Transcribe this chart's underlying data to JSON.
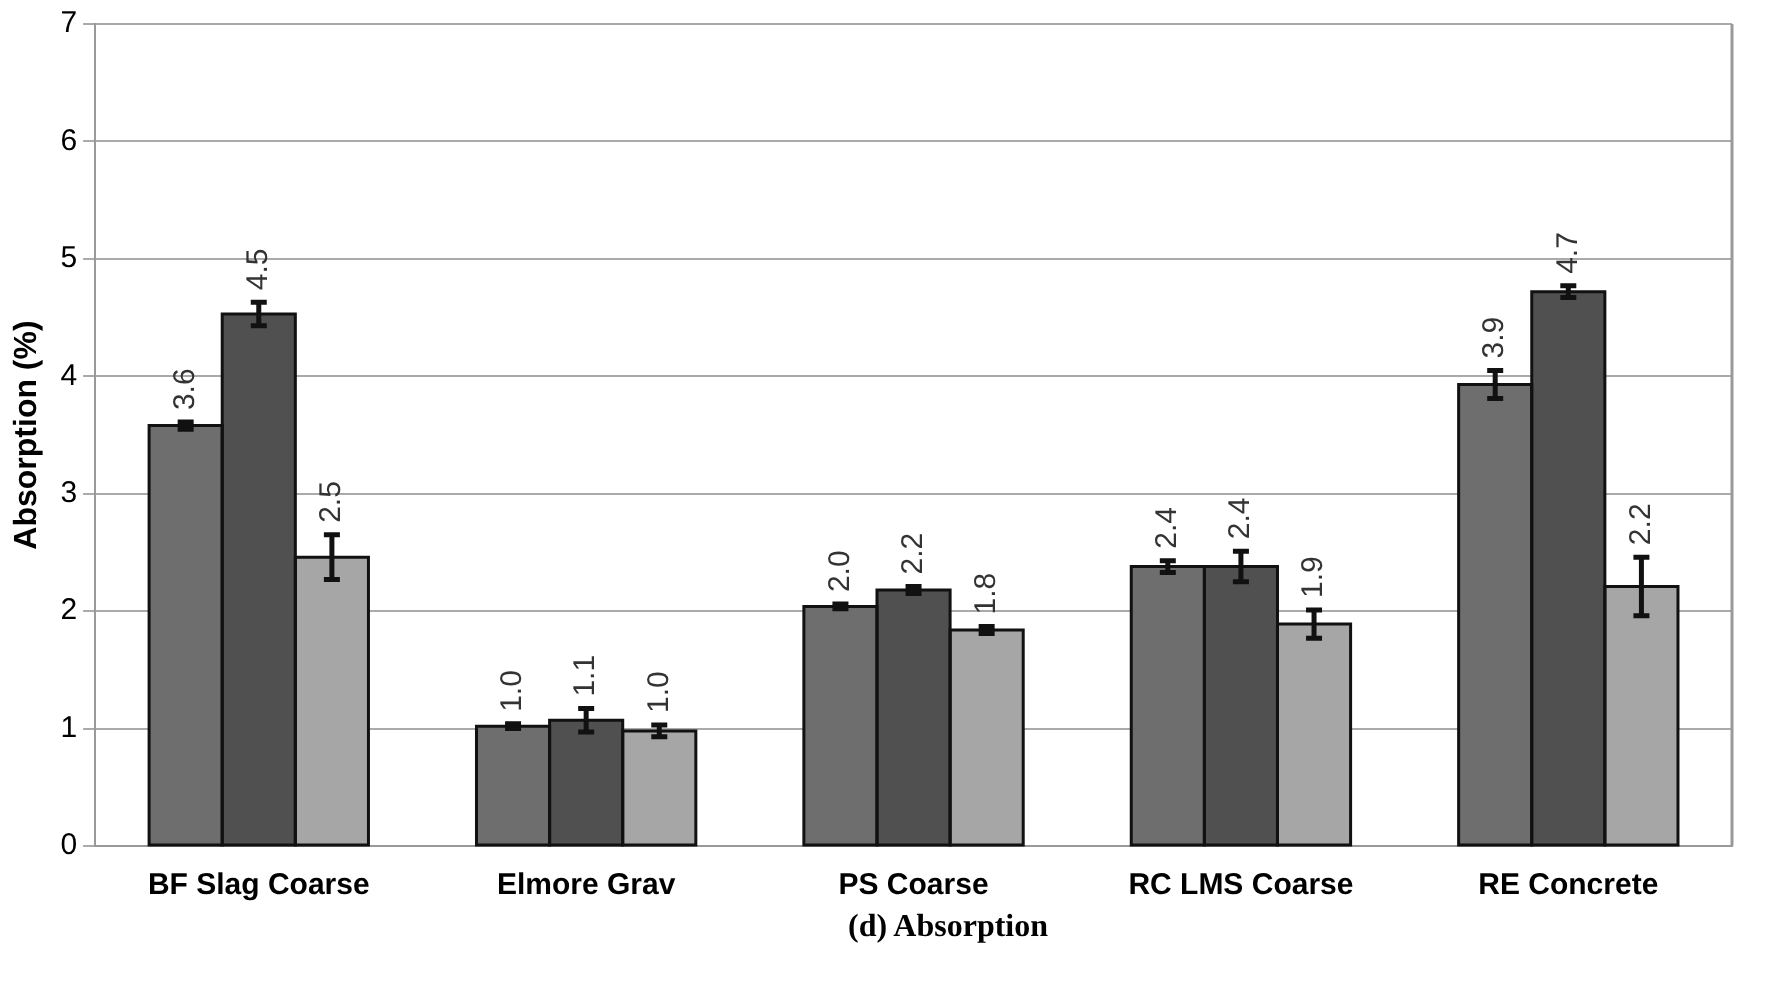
{
  "chart_data": {
    "type": "bar",
    "ylabel": "Absorption (%)",
    "annotations": [
      "(d) Absorption"
    ],
    "categories": [
      "BF Slag Coarse",
      "Elmore Grav",
      "PS Coarse",
      "RC LMS Coarse",
      "RE Concrete"
    ],
    "series": [
      {
        "color": "#6e6e6e",
        "values": [
          3.58,
          1.02,
          2.04,
          2.38,
          3.93
        ],
        "errors": [
          0.03,
          0.02,
          0.02,
          0.05,
          0.12
        ],
        "value_labels": [
          "3.6",
          "1.0",
          "2.0",
          "2.4",
          "3.9"
        ]
      },
      {
        "color": "#505050",
        "values": [
          4.53,
          1.07,
          2.18,
          2.38,
          4.72
        ],
        "errors": [
          0.1,
          0.1,
          0.03,
          0.13,
          0.05
        ],
        "value_labels": [
          "4.5",
          "1.1",
          "2.2",
          "2.4",
          "4.7"
        ]
      },
      {
        "color": "#a6a6a6",
        "values": [
          2.46,
          0.98,
          1.84,
          1.89,
          2.21
        ],
        "errors": [
          0.19,
          0.05,
          0.03,
          0.12,
          0.25
        ],
        "value_labels": [
          "2.5",
          "1.0",
          "1.8",
          "1.9",
          "2.2"
        ]
      }
    ],
    "ylim": [
      0,
      7
    ],
    "yticks": [
      0,
      1,
      2,
      3,
      4,
      5,
      6,
      7
    ],
    "grid": "y",
    "legend": false
  }
}
